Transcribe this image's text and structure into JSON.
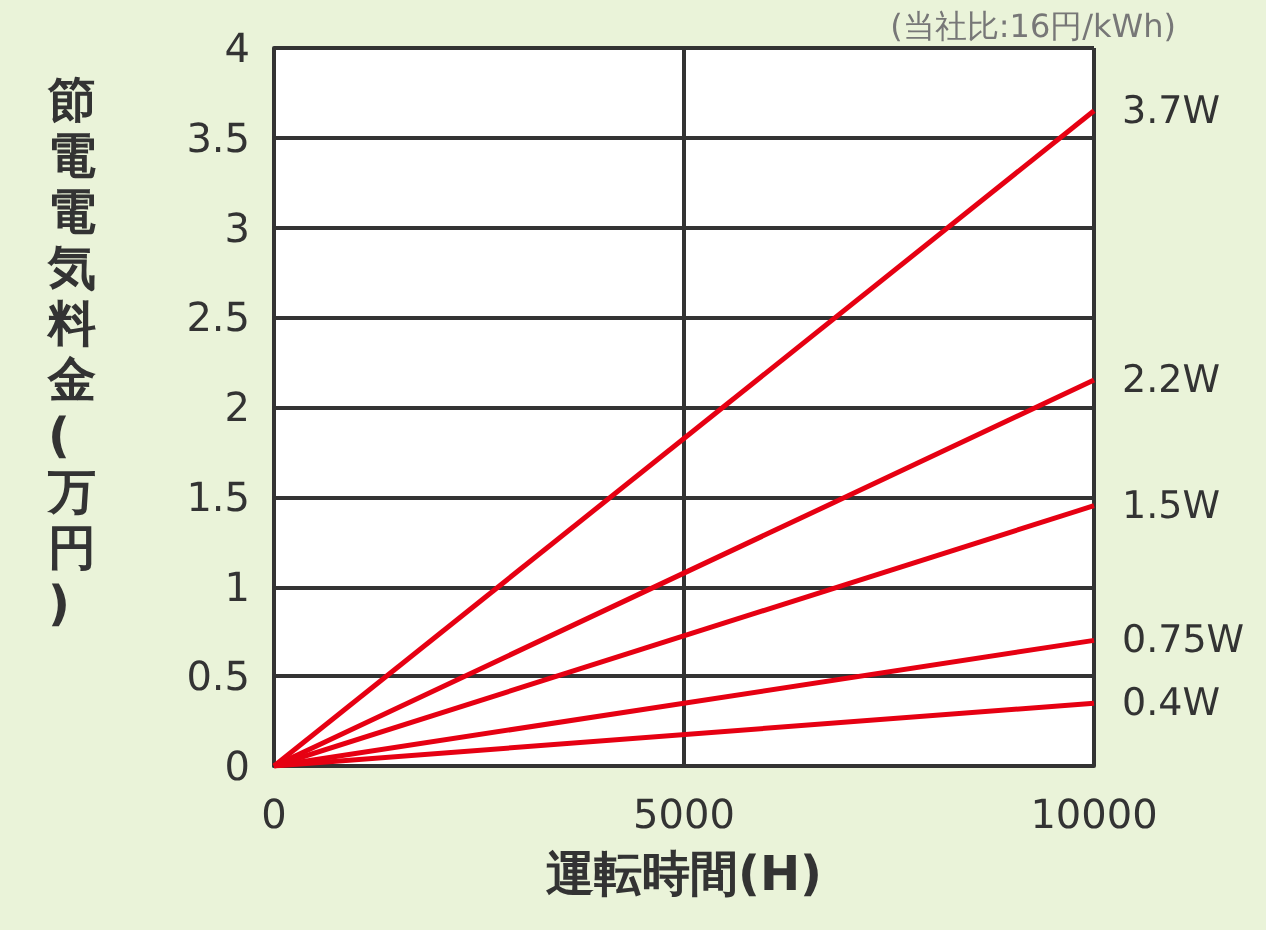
{
  "chart_data": {
    "type": "line",
    "subtitle": "(当社比:16円/kWh)",
    "xlabel": "運転時間(H)",
    "ylabel": "節電電気料金(万円)",
    "x": [
      0,
      10000
    ],
    "series": [
      {
        "name": "3.7W",
        "color": "#e60012",
        "values": [
          0,
          3.65
        ]
      },
      {
        "name": "2.2W",
        "color": "#e60012",
        "values": [
          0,
          2.15
        ]
      },
      {
        "name": "1.5W",
        "color": "#e60012",
        "values": [
          0,
          1.45
        ]
      },
      {
        "name": "0.75W",
        "color": "#e60012",
        "values": [
          0,
          0.7
        ]
      },
      {
        "name": "0.4W",
        "color": "#e60012",
        "values": [
          0,
          0.35
        ]
      }
    ],
    "xlim": [
      0,
      10000
    ],
    "xticks": [
      0,
      5000,
      10000
    ],
    "ylim": [
      0,
      4
    ],
    "yticks": [
      0,
      0.5,
      1,
      1.5,
      2,
      2.5,
      3,
      3.5,
      4
    ],
    "grid": true,
    "legend": false,
    "marker": "none",
    "line_style": "solid"
  }
}
